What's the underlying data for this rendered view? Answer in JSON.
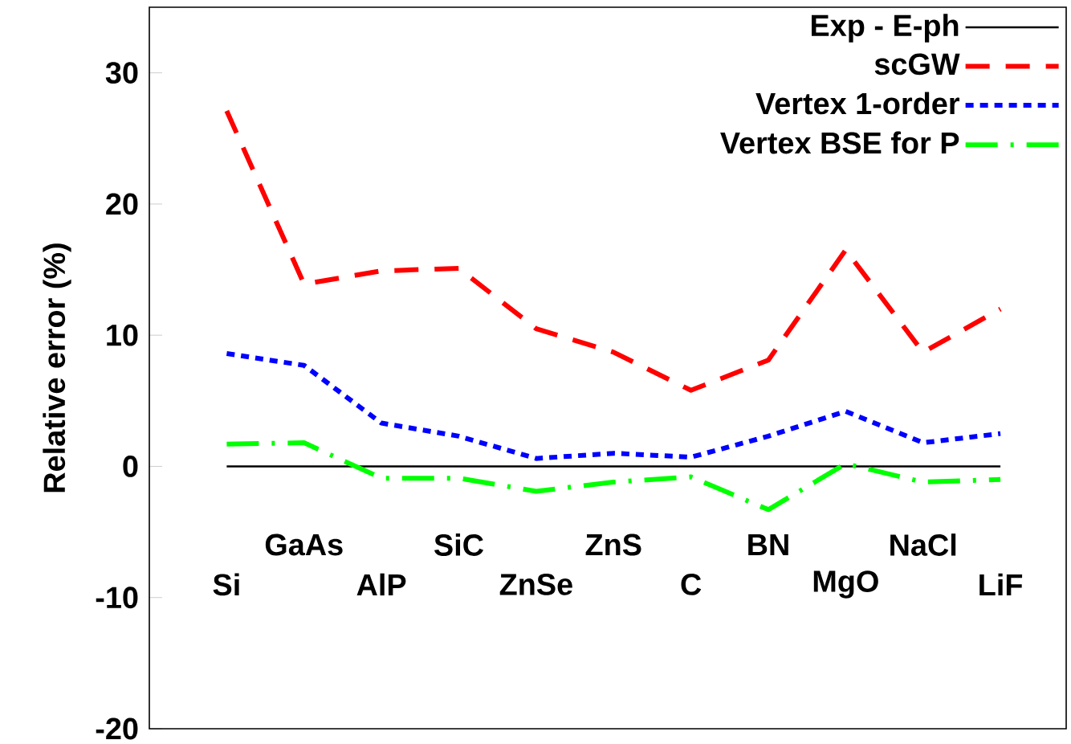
{
  "chart_data": {
    "type": "line",
    "ylabel": "Relative error (%)",
    "categories": [
      "Si",
      "GaAs",
      "AlP",
      "SiC",
      "ZnSe",
      "ZnS",
      "C",
      "BN",
      "MgO",
      "NaCl",
      "LiF"
    ],
    "series": [
      {
        "name": "Exp - E-ph",
        "color": "#000000",
        "line_style": "solid",
        "values": [
          0,
          0,
          0,
          0,
          0,
          0,
          0,
          0,
          0,
          0,
          0
        ]
      },
      {
        "name": "scGW",
        "color": "#ff0000",
        "line_style": "dashed",
        "values": [
          27.1,
          13.9,
          14.9,
          15.1,
          10.5,
          8.7,
          5.8,
          8.1,
          16.5,
          8.7,
          12.0
        ]
      },
      {
        "name": "Vertex 1-order",
        "color": "#0000ff",
        "line_style": "dotted",
        "values": [
          8.6,
          7.7,
          3.3,
          2.3,
          0.6,
          1.0,
          0.7,
          2.3,
          4.2,
          1.8,
          2.5
        ]
      },
      {
        "name": "Vertex BSE for P",
        "color": "#00ff00",
        "line_style": "dashdot",
        "values": [
          1.7,
          1.8,
          -0.9,
          -0.9,
          -1.9,
          -1.2,
          -0.8,
          -3.3,
          0.2,
          -1.2,
          -1.0
        ]
      }
    ],
    "ylim": [
      -20,
      35
    ],
    "yticks": [
      -20,
      -10,
      0,
      10,
      20,
      30
    ],
    "grid": false,
    "legend": "top right",
    "marker": "none"
  }
}
